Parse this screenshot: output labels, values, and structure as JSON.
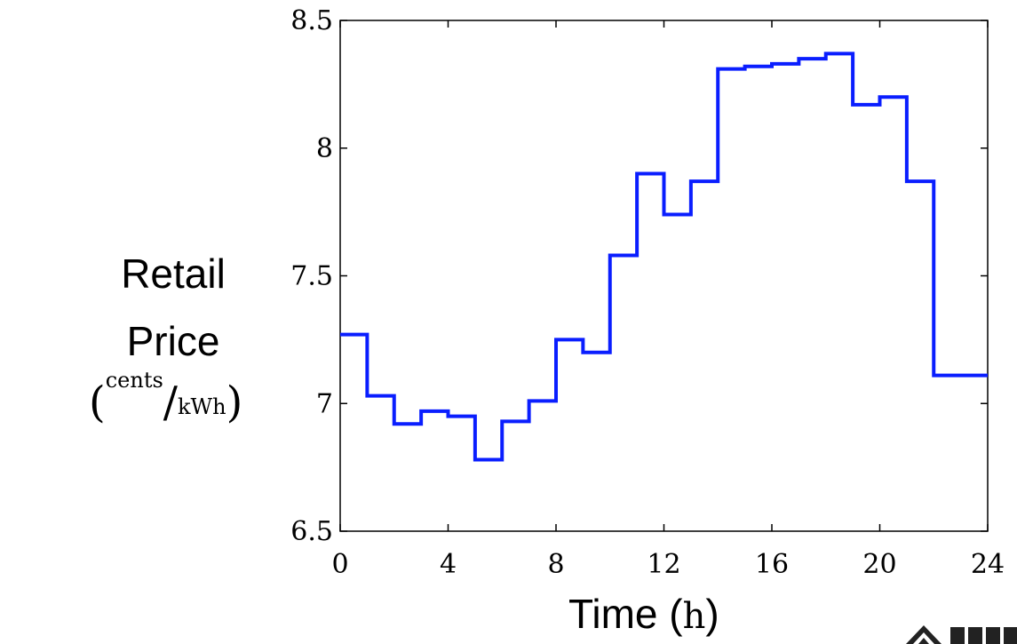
{
  "chart_data": {
    "type": "line",
    "step": true,
    "xlabel": "Time (h)",
    "ylabel_line1": "Retail",
    "ylabel_line2": "Price",
    "yunit_numerator": "cents",
    "yunit_denominator": "kWh",
    "xlim": [
      0,
      24
    ],
    "ylim": [
      6.5,
      8.5
    ],
    "xticks": [
      0,
      4,
      8,
      12,
      16,
      20,
      24
    ],
    "yticks": [
      6.5,
      7,
      7.5,
      8,
      8.5
    ],
    "ytick_labels": [
      "6.5",
      "7",
      "7.5",
      "8",
      "8.5"
    ],
    "grid": false,
    "line_color": "#0a1eff",
    "hours": [
      0,
      1,
      2,
      3,
      4,
      5,
      6,
      7,
      8,
      9,
      10,
      11,
      12,
      13,
      14,
      15,
      16,
      17,
      18,
      19,
      20,
      21,
      22,
      23
    ],
    "values": [
      7.27,
      7.03,
      6.92,
      6.97,
      6.95,
      6.78,
      6.93,
      7.01,
      7.25,
      7.2,
      7.58,
      7.9,
      7.74,
      7.87,
      8.31,
      8.32,
      8.33,
      8.35,
      8.37,
      8.17,
      8.2,
      7.87,
      7.11,
      7.11
    ]
  }
}
